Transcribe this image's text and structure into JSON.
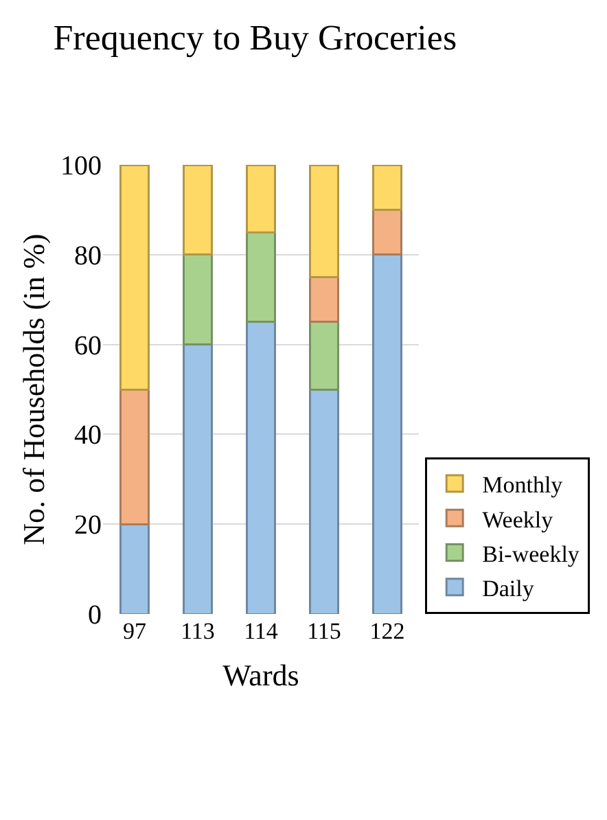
{
  "chart_data": {
    "type": "bar",
    "title": "Frequency to Buy Groceries",
    "xlabel": "Wards",
    "ylabel": "No. of Households (in %)",
    "categories": [
      "97",
      "113",
      "114",
      "115",
      "122"
    ],
    "stacked": true,
    "ylim": [
      0,
      100
    ],
    "yticks": [
      0,
      20,
      40,
      60,
      80,
      100
    ],
    "grid": "y",
    "legend": "right",
    "series": [
      {
        "name": "Daily",
        "color": "#9dc3e6",
        "values": [
          20,
          60,
          65,
          50,
          80
        ]
      },
      {
        "name": "Bi-weekly",
        "color": "#a9d18e",
        "values": [
          0,
          20,
          20,
          15,
          0
        ]
      },
      {
        "name": "Weekly",
        "color": "#f4b183",
        "values": [
          30,
          0,
          0,
          10,
          10
        ]
      },
      {
        "name": "Monthly",
        "color": "#ffd966",
        "values": [
          50,
          20,
          15,
          25,
          10
        ]
      }
    ]
  }
}
